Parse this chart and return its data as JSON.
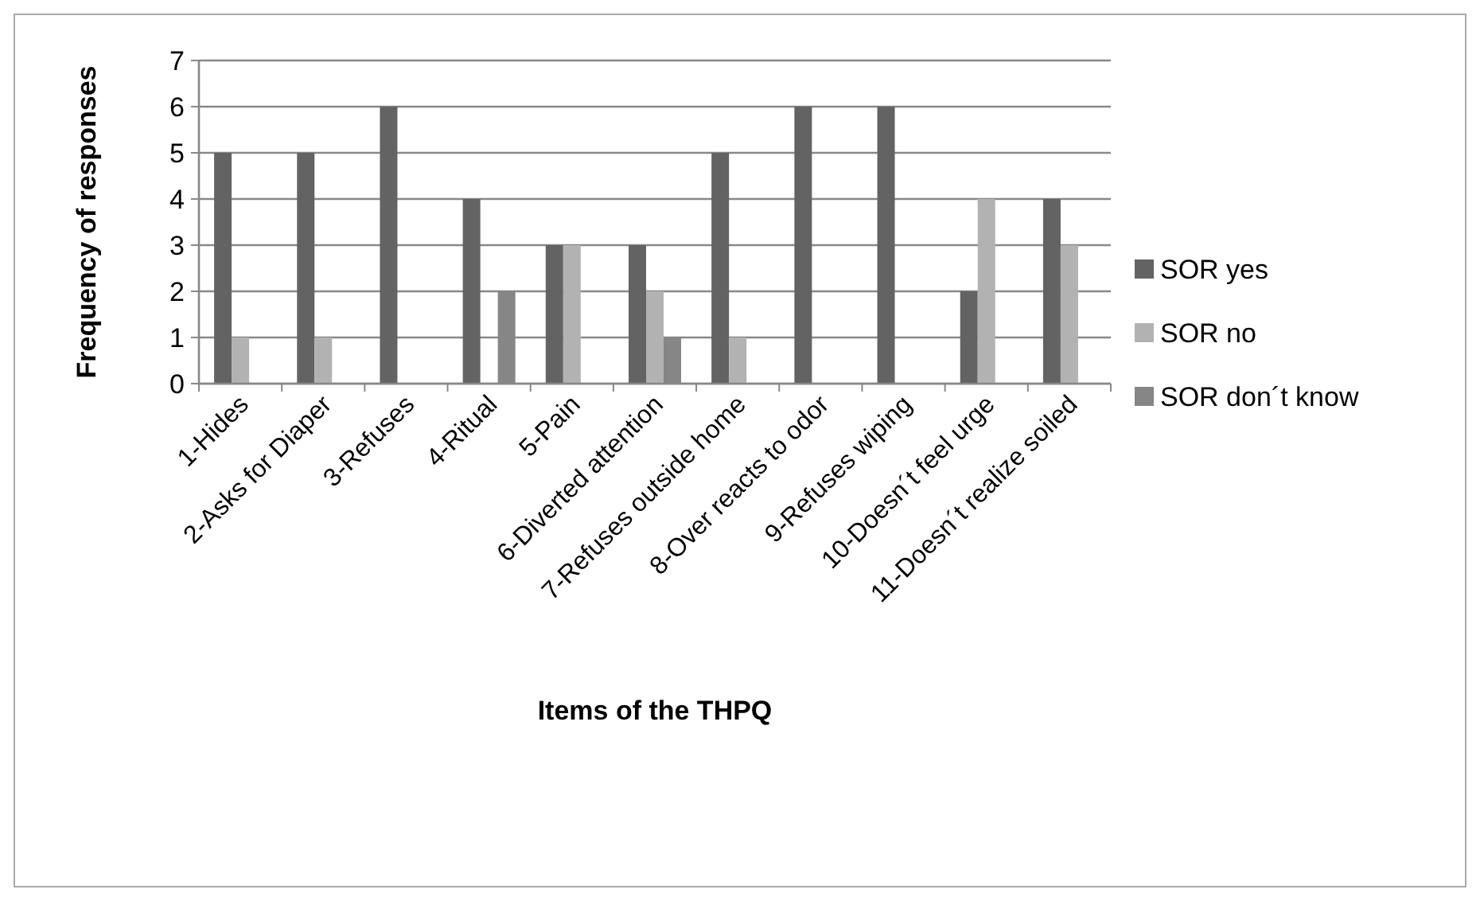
{
  "chart_data": {
    "type": "bar",
    "xlabel": "Items of the THPQ",
    "ylabel": "Frequency of responses",
    "categories": [
      "1-Hides",
      "2-Asks for Diaper",
      "3-Refuses",
      "4-Ritual",
      "5-Pain",
      "6-Diverted attention",
      "7-Refuses outside home",
      "8-Over reacts to odor",
      "9-Refuses wiping",
      "10-Doesn´t feel urge",
      "11-Doesn´t realize soiled"
    ],
    "series": [
      {
        "name": "SOR yes",
        "color": "#636363",
        "values": [
          5,
          5,
          6,
          4,
          3,
          3,
          5,
          6,
          6,
          2,
          4
        ]
      },
      {
        "name": "SOR no",
        "color": "#b2b2b2",
        "values": [
          1,
          1,
          0,
          0,
          3,
          2,
          1,
          0,
          0,
          4,
          3
        ]
      },
      {
        "name": "SOR don´t know",
        "color": "#868686",
        "values": [
          0,
          0,
          0,
          2,
          0,
          1,
          0,
          0,
          0,
          0,
          0
        ]
      }
    ],
    "ylim": [
      0,
      7
    ],
    "yticks": [
      0,
      1,
      2,
      3,
      4,
      5,
      6,
      7
    ],
    "grid": "y",
    "legend": "right"
  }
}
